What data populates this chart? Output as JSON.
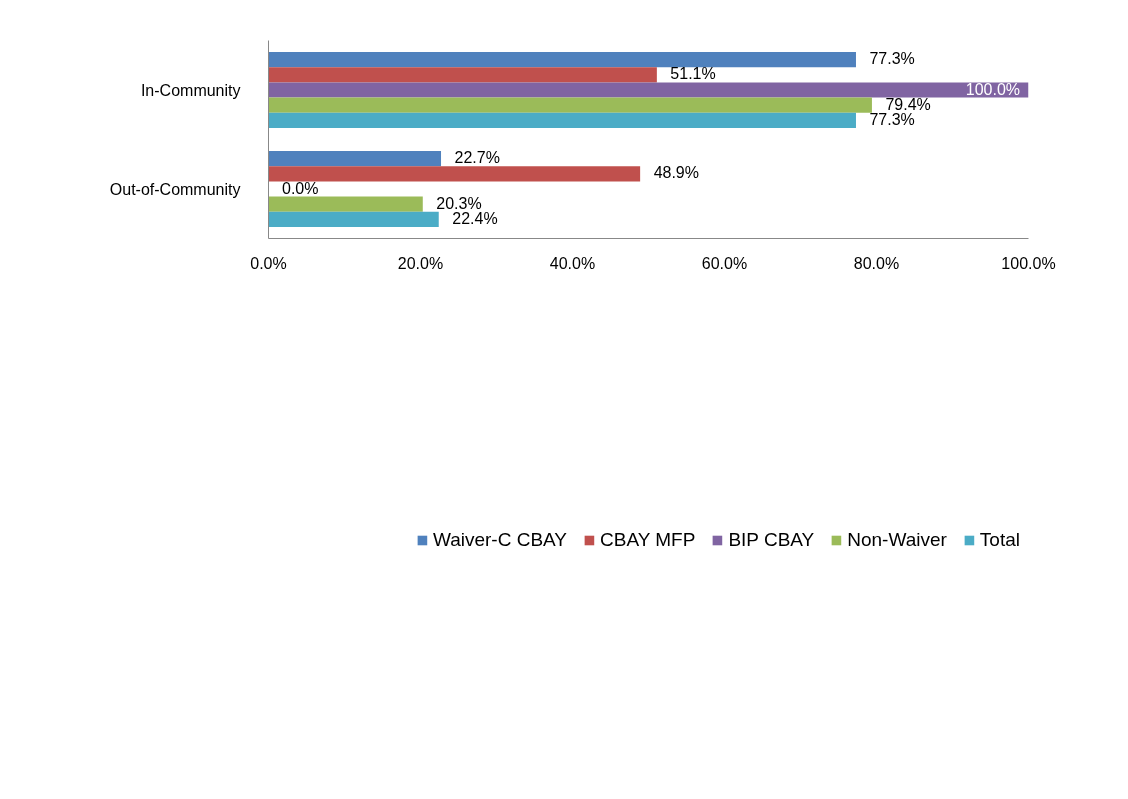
{
  "chart_data": {
    "type": "bar",
    "orientation": "horizontal",
    "categories": [
      "In-Community",
      "Out-of-Community"
    ],
    "series": [
      {
        "name": "Waiver-C CBAY",
        "color": "#4f81bd",
        "values": [
          77.3,
          22.7
        ],
        "value_labels": [
          "77.3%",
          "22.7%"
        ]
      },
      {
        "name": "CBAY MFP",
        "color": "#c0504d",
        "values": [
          51.1,
          48.9
        ],
        "value_labels": [
          "51.1%",
          "48.9%"
        ]
      },
      {
        "name": "BIP CBAY",
        "color": "#8064a2",
        "values": [
          100.0,
          0.0
        ],
        "value_labels": [
          "100.0%",
          "0.0%"
        ]
      },
      {
        "name": "Non-Waiver",
        "color": "#9bbb59",
        "values": [
          79.4,
          20.3
        ],
        "value_labels": [
          "79.4%",
          "20.3%"
        ]
      },
      {
        "name": "Total",
        "color": "#4bacc6",
        "values": [
          77.3,
          22.4
        ],
        "value_labels": [
          "77.3%",
          "22.4%"
        ]
      }
    ],
    "xlim": [
      0,
      100
    ],
    "xticks": [
      {
        "value": 0,
        "label": "0.0%"
      },
      {
        "value": 20,
        "label": "20.0%"
      },
      {
        "value": 40,
        "label": "40.0%"
      },
      {
        "value": 60,
        "label": "60.0%"
      },
      {
        "value": 80,
        "label": "80.0%"
      },
      {
        "value": 100,
        "label": "100.0%"
      }
    ],
    "grid": false,
    "legend": "bottom"
  }
}
